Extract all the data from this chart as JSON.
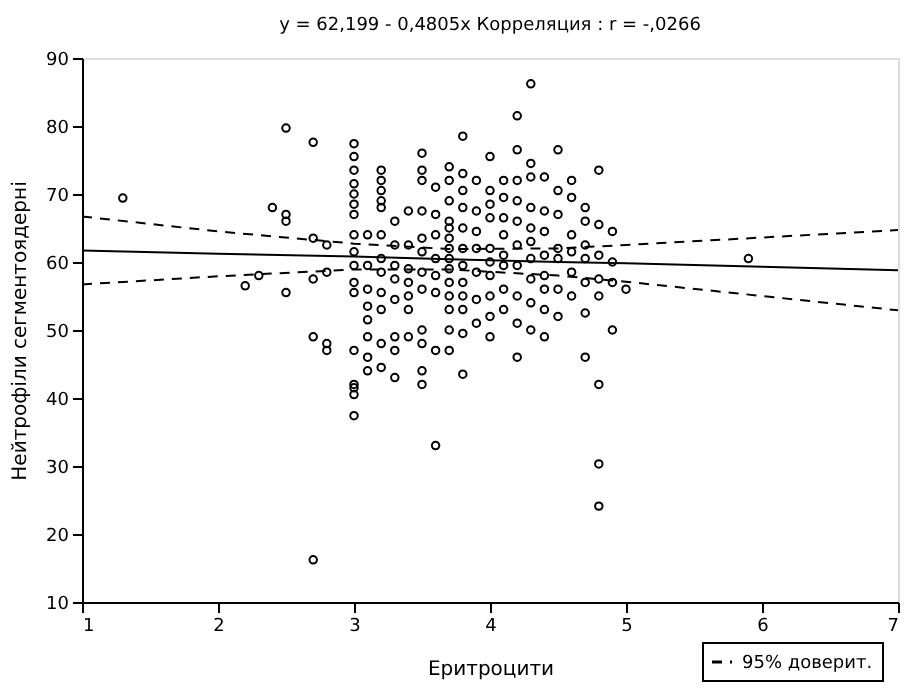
{
  "chart_data": {
    "type": "scatter",
    "title": "y = 62,199 - 0,4805x  Корреляция : r = -,0266",
    "xlabel": "Еритроцити",
    "ylabel": "Нейтрофіли сегментоядерні",
    "xlim": [
      1,
      7
    ],
    "ylim": [
      10,
      90
    ],
    "xticks": [
      1,
      2,
      3,
      4,
      5,
      6,
      7
    ],
    "yticks": [
      10,
      20,
      30,
      40,
      50,
      60,
      70,
      80,
      90
    ],
    "grid": false,
    "legend": "bottom right",
    "marker": "circle",
    "series": [
      {
        "type": "scatter",
        "color": "#000000",
        "x": [
          1.3,
          2.2,
          2.3,
          2.4,
          2.5,
          2.5,
          2.5,
          2.5,
          2.7,
          2.7,
          2.7,
          2.7,
          2.7,
          2.8,
          2.8,
          2.8,
          2.8,
          3.0,
          3.0,
          3.0,
          3.0,
          3.0,
          3.0,
          3.0,
          3.0,
          3.0,
          3.0,
          3.0,
          3.0,
          3.0,
          3.0,
          3.0,
          3.0,
          3.0,
          3.1,
          3.1,
          3.1,
          3.1,
          3.1,
          3.1,
          3.1,
          3.1,
          3.2,
          3.2,
          3.2,
          3.2,
          3.2,
          3.2,
          3.2,
          3.2,
          3.2,
          3.2,
          3.2,
          3.2,
          3.3,
          3.3,
          3.3,
          3.3,
          3.3,
          3.3,
          3.3,
          3.3,
          3.4,
          3.4,
          3.4,
          3.4,
          3.4,
          3.4,
          3.4,
          3.5,
          3.5,
          3.5,
          3.5,
          3.5,
          3.5,
          3.5,
          3.5,
          3.5,
          3.5,
          3.5,
          3.5,
          3.6,
          3.6,
          3.6,
          3.6,
          3.6,
          3.6,
          3.6,
          3.6,
          3.7,
          3.7,
          3.7,
          3.7,
          3.7,
          3.7,
          3.7,
          3.7,
          3.7,
          3.7,
          3.7,
          3.7,
          3.7,
          3.7,
          3.8,
          3.8,
          3.8,
          3.8,
          3.8,
          3.8,
          3.8,
          3.8,
          3.8,
          3.8,
          3.8,
          3.8,
          3.9,
          3.9,
          3.9,
          3.9,
          3.9,
          3.9,
          3.9,
          4.0,
          4.0,
          4.0,
          4.0,
          4.0,
          4.0,
          4.0,
          4.0,
          4.0,
          4.0,
          4.1,
          4.1,
          4.1,
          4.1,
          4.1,
          4.1,
          4.1,
          4.1,
          4.2,
          4.2,
          4.2,
          4.2,
          4.2,
          4.2,
          4.2,
          4.2,
          4.2,
          4.2,
          4.3,
          4.3,
          4.3,
          4.3,
          4.3,
          4.3,
          4.3,
          4.3,
          4.3,
          4.3,
          4.4,
          4.4,
          4.4,
          4.4,
          4.4,
          4.4,
          4.4,
          4.4,
          4.5,
          4.5,
          4.5,
          4.5,
          4.5,
          4.5,
          4.5,
          4.6,
          4.6,
          4.6,
          4.6,
          4.6,
          4.6,
          4.7,
          4.7,
          4.7,
          4.7,
          4.7,
          4.7,
          4.7,
          4.8,
          4.8,
          4.8,
          4.8,
          4.8,
          4.8,
          4.8,
          4.8,
          4.9,
          4.9,
          4.9,
          4.9,
          5.0,
          5.9
        ],
        "values": [
          69.4,
          56.5,
          58,
          68,
          79.7,
          67,
          66,
          55.5,
          77.6,
          63.5,
          57.5,
          49,
          16.2,
          62.5,
          58.5,
          48,
          47,
          77.4,
          75.5,
          73.5,
          71.5,
          70,
          68.5,
          67,
          64,
          61.5,
          59.5,
          57,
          55.5,
          47,
          42,
          41.5,
          40.5,
          37.4,
          64,
          59.5,
          56,
          53.5,
          51.5,
          49,
          46,
          44,
          73.5,
          72,
          70.5,
          69,
          68,
          64,
          60.5,
          58.5,
          55.5,
          53,
          48,
          44.5,
          66,
          62.5,
          59.5,
          57.5,
          54.5,
          49,
          47,
          43,
          67.5,
          62.5,
          59,
          57,
          55,
          53,
          49,
          76,
          73.5,
          72,
          67.5,
          63.5,
          61.5,
          58.5,
          56,
          50,
          48,
          44,
          42,
          71,
          67,
          64,
          60.5,
          58,
          55.5,
          47,
          33,
          74,
          72,
          69,
          66,
          65,
          63.5,
          62,
          60.5,
          59,
          57,
          55,
          53,
          50,
          47,
          78.5,
          73,
          70.5,
          68,
          65,
          62,
          59.5,
          57,
          55,
          53,
          49.5,
          43.5,
          72,
          67.5,
          64.5,
          62,
          58.5,
          54.5,
          51,
          75.5,
          70.5,
          68.5,
          66.5,
          62,
          60,
          58,
          55,
          52,
          49,
          72,
          69.5,
          66.5,
          64,
          61,
          59.5,
          56,
          53,
          81.5,
          76.5,
          72,
          69,
          66,
          62.5,
          59.5,
          55,
          51,
          46,
          86.2,
          74.5,
          72.5,
          68,
          65,
          63,
          60.5,
          57.5,
          54,
          50,
          72.5,
          67.5,
          64.5,
          61,
          58,
          56,
          53,
          49,
          76.5,
          70.5,
          67,
          62,
          60.5,
          56,
          52,
          72,
          69.5,
          64,
          61.5,
          58.5,
          55,
          68,
          66,
          62.5,
          60.5,
          57,
          52.5,
          46,
          73.5,
          65.5,
          61,
          57.5,
          55,
          42,
          30.3,
          24.1,
          64.5,
          60,
          57,
          50,
          56,
          60.5
        ]
      },
      {
        "type": "line",
        "color": "#000000",
        "line_style": "solid",
        "marker": "none",
        "x": [
          1,
          2,
          3,
          3.7,
          4.5,
          5,
          6,
          7
        ],
        "values": [
          61.7,
          61.2,
          60.8,
          60.4,
          60.0,
          59.8,
          59.3,
          58.8
        ]
      },
      {
        "type": "line",
        "name": "95% доверит.",
        "color": "#000000",
        "line_style": "dashed",
        "marker": "none",
        "x": [
          1,
          2,
          3,
          3.7,
          4.5,
          5,
          6,
          7
        ],
        "values": [
          66.7,
          64.5,
          62.7,
          61.9,
          62.0,
          62.5,
          63.6,
          64.7
        ]
      },
      {
        "type": "line",
        "color": "#000000",
        "line_style": "dashed",
        "marker": "none",
        "x": [
          1,
          2,
          3,
          3.7,
          4.5,
          5,
          6,
          7
        ],
        "values": [
          56.7,
          57.9,
          58.9,
          58.9,
          58.0,
          57.1,
          55.0,
          52.9
        ]
      }
    ]
  }
}
